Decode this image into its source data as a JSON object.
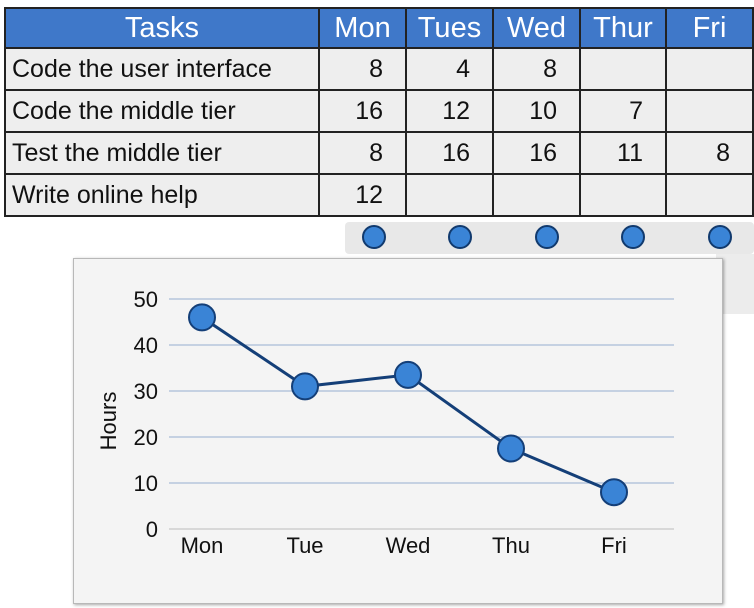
{
  "table": {
    "headers": [
      "Tasks",
      "Mon",
      "Tues",
      "Wed",
      "Thur",
      "Fri"
    ],
    "rows": [
      {
        "task": "Code the user interface",
        "values": [
          "8",
          "4",
          "8",
          "",
          ""
        ]
      },
      {
        "task": "Code the middle tier",
        "values": [
          "16",
          "12",
          "10",
          "7",
          ""
        ]
      },
      {
        "task": "Test the middle tier",
        "values": [
          "8",
          "16",
          "16",
          "11",
          "8"
        ]
      },
      {
        "task": "Write online help",
        "values": [
          "12",
          "",
          "",
          "",
          ""
        ]
      }
    ]
  },
  "colors": {
    "header_bg": "#3f78c9",
    "marker_fill": "#3a84d6",
    "line": "#143f78",
    "grid": "#a9bcd8"
  },
  "chart_data": {
    "type": "line",
    "title": "",
    "xlabel": "",
    "ylabel": "Hours",
    "categories": [
      "Mon",
      "Tue",
      "Wed",
      "Thu",
      "Fri"
    ],
    "series": [
      {
        "values": [
          46,
          31,
          33.5,
          17.5,
          8
        ]
      }
    ],
    "ylim": [
      0,
      50
    ],
    "yticks": [
      0,
      10,
      20,
      30,
      40,
      50
    ],
    "grid": true,
    "legend": "none"
  }
}
